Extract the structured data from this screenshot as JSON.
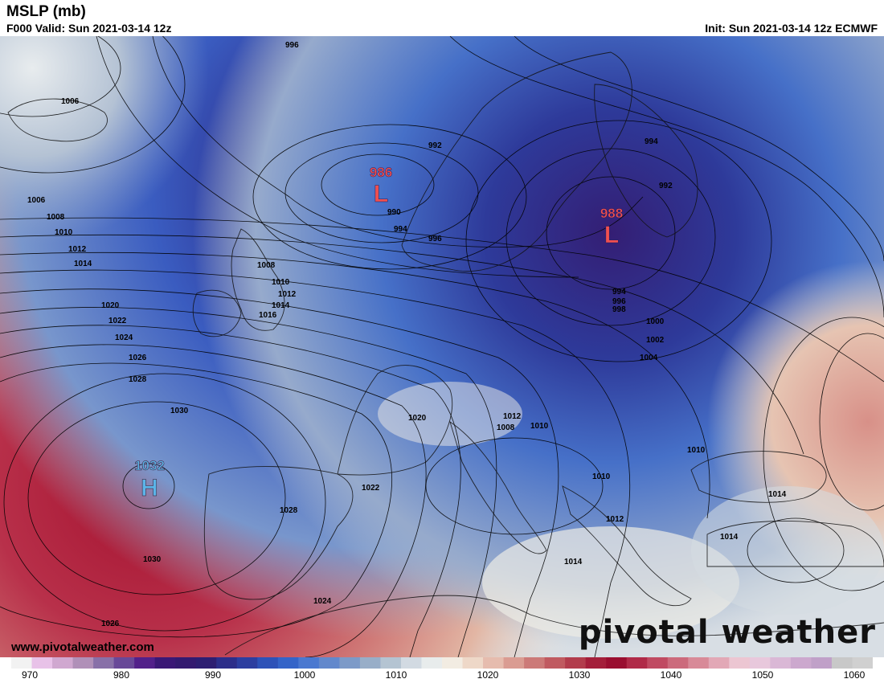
{
  "header": {
    "title": "MSLP (mb)",
    "valid": "F000 Valid: Sun 2021-03-14 12z",
    "init": "Init: Sun 2021-03-14 12z ECMWF"
  },
  "map": {
    "isobar_labels": [
      "996",
      "1006",
      "992",
      "986",
      "990",
      "994",
      "996",
      "994",
      "988",
      "992",
      "1006",
      "1008",
      "1010",
      "1012",
      "1014",
      "1008",
      "1010",
      "1012",
      "1014",
      "1016",
      "994",
      "996",
      "998",
      "1000",
      "1002",
      "1004",
      "1020",
      "1022",
      "1024",
      "1026",
      "1028",
      "1030",
      "1032",
      "1020",
      "1012",
      "1008",
      "1010",
      "1010",
      "1022",
      "1028",
      "1010",
      "1012",
      "1014",
      "1014",
      "1014",
      "1030",
      "1024",
      "1026"
    ],
    "pressure_centers": [
      {
        "value": "986",
        "letter": "L",
        "color": "#f05050"
      },
      {
        "value": "988",
        "letter": "L",
        "color": "#f05050"
      },
      {
        "value": "1032",
        "letter": "H",
        "color": "#5bb4e8"
      }
    ]
  },
  "footer": {
    "website": "www.pivotalweather.com",
    "brand": "pivotal weather"
  },
  "colorbar": {
    "ticks": [
      "970",
      "980",
      "990",
      "1000",
      "1010",
      "1020",
      "1030",
      "1040",
      "1050",
      "1060"
    ],
    "colors": [
      "#f2f2f2",
      "#e8c2e8",
      "#d0a8d0",
      "#b090b8",
      "#8870a8",
      "#684898",
      "#52208a",
      "#3a1876",
      "#331a70",
      "#2d1e72",
      "#2c2e8a",
      "#2c3ea0",
      "#2d52b8",
      "#3464c8",
      "#4a78d0",
      "#6288cc",
      "#7c9ac8",
      "#98aec8",
      "#b4c4d2",
      "#d2dae2",
      "#e8ecec",
      "#f2ece2",
      "#eed8c8",
      "#e6bcae",
      "#da9c92",
      "#cc7a78",
      "#c05a60",
      "#b23c4c",
      "#a41e3a",
      "#9a0e30",
      "#b02a48",
      "#c04a62",
      "#cc6a7c",
      "#d88a98",
      "#e2a8b6",
      "#ecc6d2",
      "#e8c8dc",
      "#dab8d6",
      "#cca8ce",
      "#c0a0c8",
      "#c8c8c8",
      "#d0d0d0"
    ]
  }
}
